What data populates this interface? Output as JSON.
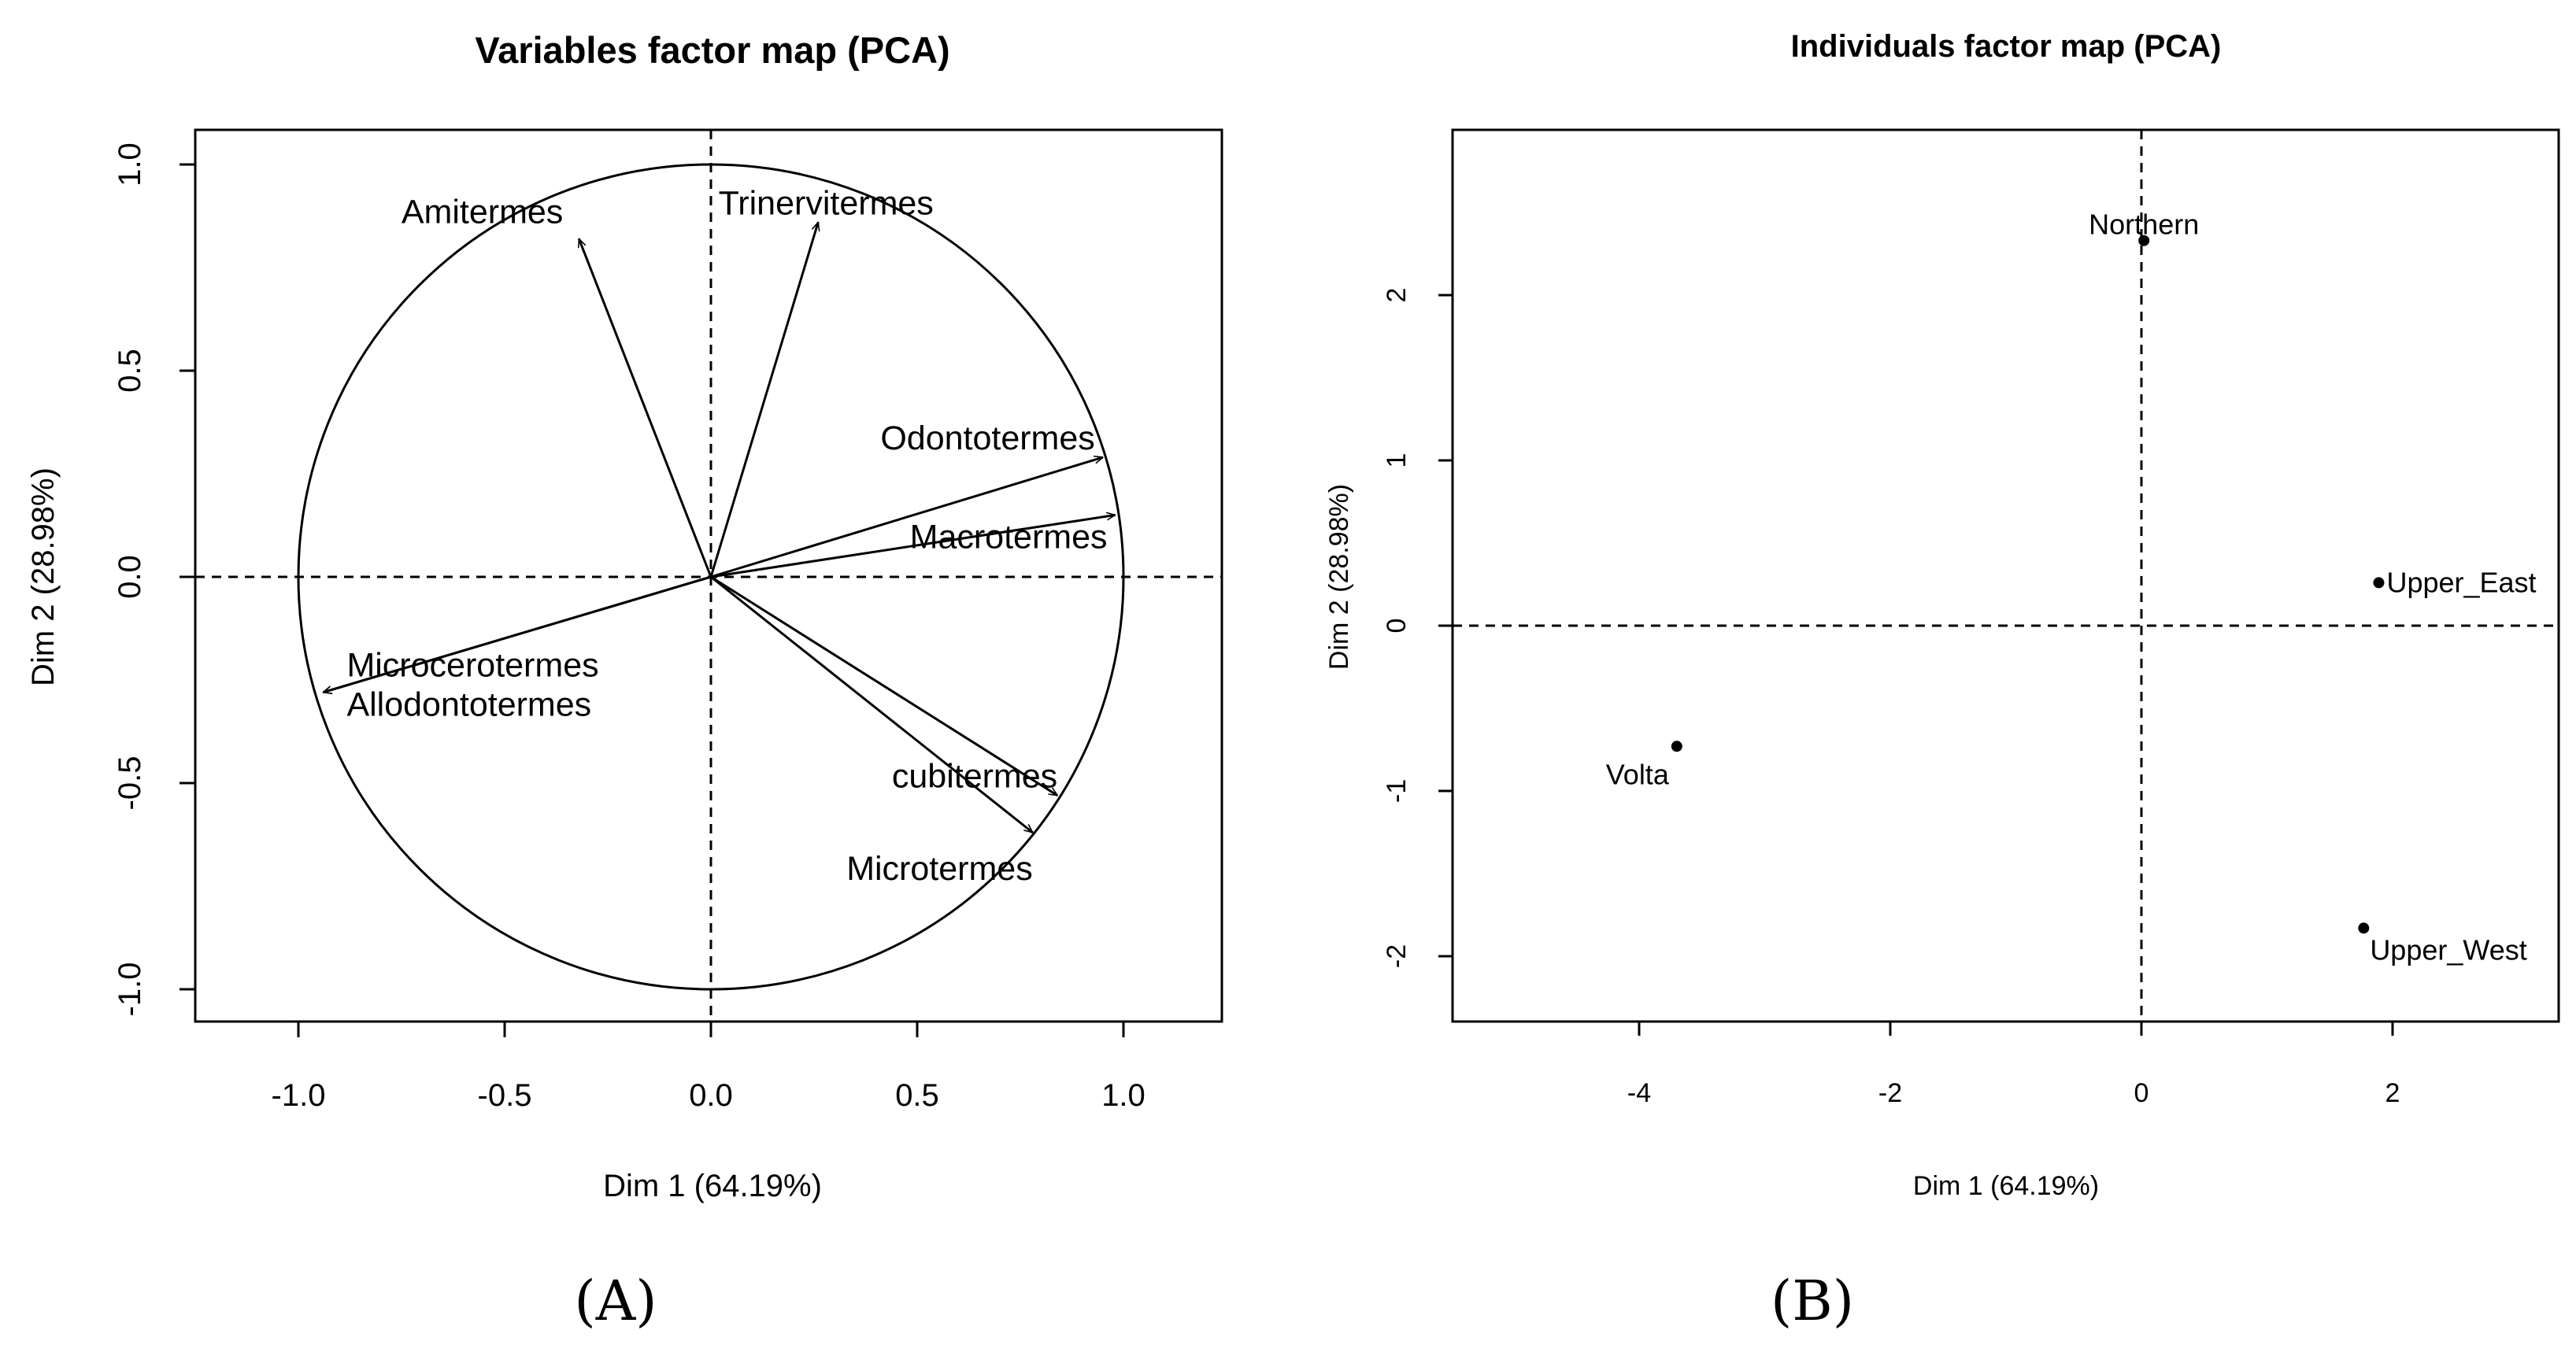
{
  "chart_data": [
    {
      "type": "scatter",
      "variant": "pca-variables-correlation-circle",
      "title": "Variables factor map (PCA)",
      "xlabel": "Dim 1 (64.19%)",
      "ylabel": "Dim 2 (28.98%)",
      "panel_label": "(A)",
      "xlim": [
        -1.25,
        1.25
      ],
      "ylim": [
        -1.08,
        1.08
      ],
      "xticks": [
        -1.0,
        -0.5,
        0.0,
        0.5,
        1.0
      ],
      "xtick_labels": [
        "-1.0",
        "-0.5",
        "0.0",
        "0.5",
        "1.0"
      ],
      "yticks": [
        -1.0,
        -0.5,
        0.0,
        0.5,
        1.0
      ],
      "ytick_labels": [
        "-1.0",
        "-0.5",
        "0.0",
        "0.5",
        "1.0"
      ],
      "unit_circle": true,
      "reference_lines": {
        "x": 0,
        "y": 0,
        "style": "dashed"
      },
      "variables": [
        {
          "name": "Amitermes",
          "x": -0.32,
          "y": 0.82
        },
        {
          "name": "Trinervitermes",
          "x": 0.26,
          "y": 0.86
        },
        {
          "name": "Odontotermes",
          "x": 0.95,
          "y": 0.29
        },
        {
          "name": "Macrotermes",
          "x": 0.98,
          "y": 0.15
        },
        {
          "name": "Microcerotermes",
          "x": -0.94,
          "y": -0.28
        },
        {
          "name": "Allodontotermes",
          "x": -0.94,
          "y": -0.28
        },
        {
          "name": "cubitermes",
          "x": 0.84,
          "y": -0.53
        },
        {
          "name": "Microtermes",
          "x": 0.78,
          "y": -0.62
        }
      ]
    },
    {
      "type": "scatter",
      "variant": "pca-individuals",
      "title": "Individuals factor map (PCA)",
      "xlabel": "Dim 1 (64.19%)",
      "ylabel": "Dim 2 (28.98%)",
      "panel_label": "(B)",
      "xlim": [
        -5.4,
        3.4
      ],
      "ylim": [
        -2.4,
        2.95
      ],
      "xticks": [
        -4,
        -2,
        0,
        2
      ],
      "xtick_labels": [
        "-4",
        "-2",
        "0",
        "2"
      ],
      "yticks": [
        -2,
        -1,
        0,
        1,
        2
      ],
      "ytick_labels": [
        "-2",
        "-1",
        "0",
        "1",
        "2"
      ],
      "reference_lines": {
        "x": 0,
        "y": 0,
        "style": "dashed"
      },
      "points": [
        {
          "name": "Northern",
          "x": 0.02,
          "y": 2.33
        },
        {
          "name": "Upper_East",
          "x": 1.89,
          "y": 0.26
        },
        {
          "name": "Volta",
          "x": -3.7,
          "y": -0.73
        },
        {
          "name": "Upper_West",
          "x": 1.77,
          "y": -1.83
        }
      ]
    }
  ]
}
